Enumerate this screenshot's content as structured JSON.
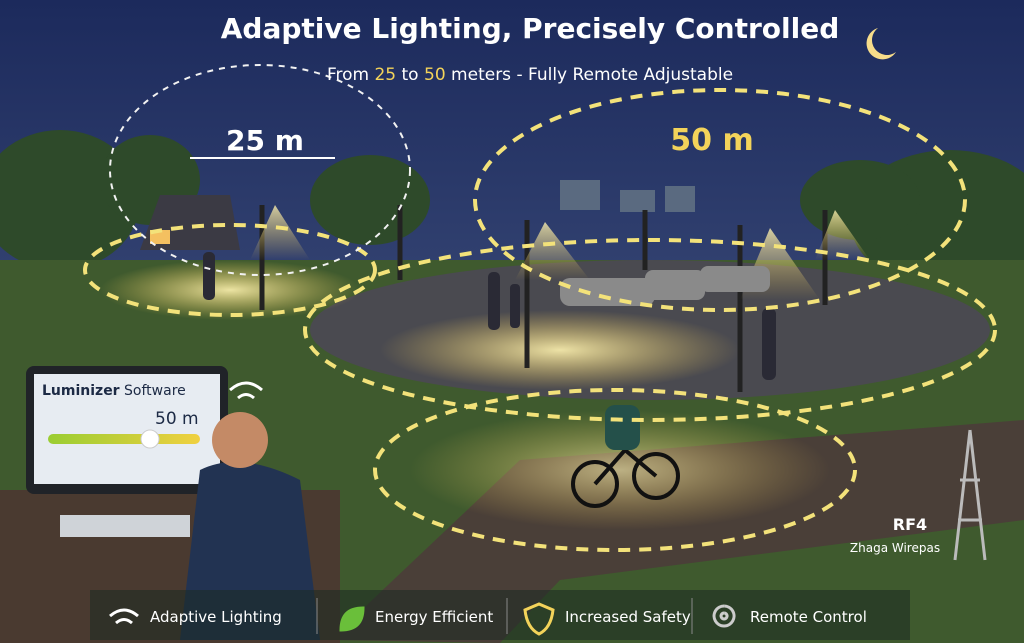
{
  "header": {
    "title": "Adaptive Lighting, Precisely Controlled",
    "subtitle": {
      "prefix": "From",
      "min": "25",
      "middle": "to",
      "max": "50",
      "suffix": "meters - Fully Remote Adjustable"
    }
  },
  "zones": [
    {
      "label": "25 m"
    },
    {
      "label": "50 m"
    }
  ],
  "software": {
    "brand": "Luminizer",
    "product": "Software",
    "setting": "50 m"
  },
  "network": {
    "protocol": "RF4",
    "stack": "Zhaga Wirepas"
  },
  "features": [
    "Adaptive Lighting",
    "Energy Efficient",
    "Increased Safety",
    "Remote Control"
  ]
}
